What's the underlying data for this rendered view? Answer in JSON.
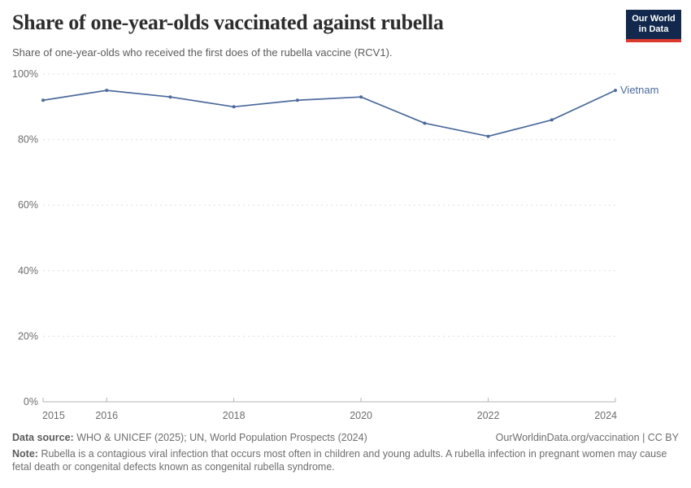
{
  "header": {
    "title": "Share of one-year-olds vaccinated against rubella",
    "subtitle": "Share of one-year-olds who received the first does of the rubella vaccine (RCV1).",
    "logo": {
      "line1": "Our World",
      "line2": "in Data",
      "bg_color": "#12294d",
      "accent_color": "#dc3a2f"
    }
  },
  "chart_data": {
    "type": "line",
    "x": [
      2015,
      2016,
      2017,
      2018,
      2019,
      2020,
      2021,
      2022,
      2023,
      2024
    ],
    "series": [
      {
        "name": "Vietnam",
        "values": [
          92,
          95,
          93,
          90,
          92,
          93,
          85,
          81,
          86,
          95
        ],
        "color": "#4C6A9C"
      }
    ],
    "title": "Share of one-year-olds vaccinated against rubella",
    "xlabel": "",
    "ylabel": "",
    "ylim": [
      0,
      100
    ],
    "xlim": [
      2015,
      2024
    ],
    "yticks": [
      {
        "value": 0,
        "label": "0%"
      },
      {
        "value": 20,
        "label": "20%"
      },
      {
        "value": 40,
        "label": "40%"
      },
      {
        "value": 60,
        "label": "60%"
      },
      {
        "value": 80,
        "label": "80%"
      },
      {
        "value": 100,
        "label": "100%"
      }
    ],
    "xticks": [
      {
        "value": 2015,
        "label": "2015"
      },
      {
        "value": 2016,
        "label": "2016"
      },
      {
        "value": 2018,
        "label": "2018"
      },
      {
        "value": 2020,
        "label": "2020"
      },
      {
        "value": 2022,
        "label": "2022"
      },
      {
        "value": 2024,
        "label": "2024"
      }
    ],
    "grid": "horizontal-dashed",
    "legend_position": "end-of-line-label",
    "colors": {
      "grid": "#e0e0e0",
      "axis": "#b3b3b3",
      "tick_text": "#6d6d6d"
    }
  },
  "footer": {
    "data_source_label": "Data source:",
    "data_source": "WHO & UNICEF (2025); UN, World Population Prospects (2024)",
    "attribution": "OurWorldinData.org/vaccination | CC BY",
    "note_label": "Note:",
    "note": "Rubella is a contagious viral infection that occurs most often in children and young adults. A rubella infection in pregnant women may cause fetal death or congenital defects known as congenital rubella syndrome."
  }
}
